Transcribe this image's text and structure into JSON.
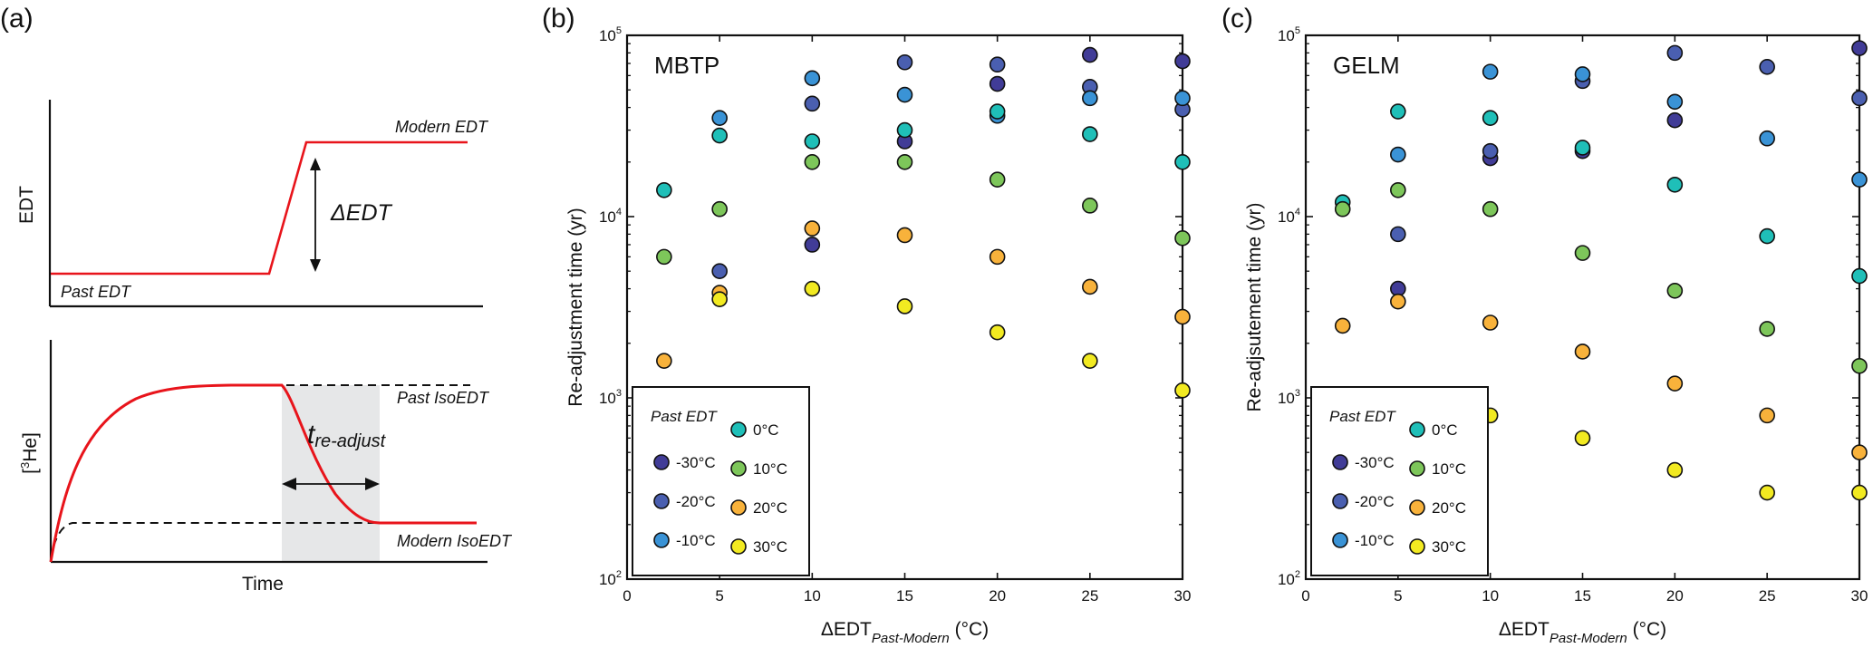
{
  "figure": {
    "panel_a": {
      "letter": "(a)",
      "top": {
        "ylabel": "EDT",
        "past_label": "Past EDT",
        "modern_label": "Modern EDT",
        "delta_label": "ΔEDT"
      },
      "bottom": {
        "ylabel_pre": "[",
        "ylabel_sup": "3",
        "ylabel_post": "He]",
        "xlabel": "Time",
        "past_iso_label": "Past IsoEDT",
        "modern_iso_label": "Modern IsoEDT",
        "t_main": "t",
        "t_sub": "re-adjust"
      },
      "colors": {
        "curve": "#e8141b",
        "shade": "#e6e7e8"
      }
    }
  },
  "chart_data": [
    {
      "type": "scatter",
      "panel": "(b)",
      "title": "MBTP",
      "xlabel_main": "ΔEDT",
      "xlabel_sub": "Past-Modern",
      "xlabel_unit": " (°C)",
      "ylabel": "Re-adjustment time (yr)",
      "xlim": [
        0,
        30
      ],
      "ylim": [
        100,
        100000
      ],
      "yscale": "log",
      "xticks": [
        0,
        5,
        10,
        15,
        20,
        25,
        30
      ],
      "yticks": [
        {
          "base": "10",
          "exp": "2"
        },
        {
          "base": "10",
          "exp": "3"
        },
        {
          "base": "10",
          "exp": "4"
        },
        {
          "base": "10",
          "exp": "5"
        }
      ],
      "legend_title": "Past EDT",
      "legend_position": "bottom-left",
      "series": [
        {
          "name": "-30°C",
          "color": "#413c97",
          "points": [
            [
              10,
              7000
            ],
            [
              15,
              26000
            ],
            [
              20,
              54000
            ],
            [
              25,
              78000
            ],
            [
              30,
              72000
            ]
          ]
        },
        {
          "name": "-20°C",
          "color": "#4a5fb0",
          "points": [
            [
              5,
              5000
            ],
            [
              10,
              42000
            ],
            [
              15,
              71000
            ],
            [
              20,
              69000
            ],
            [
              25,
              52000
            ],
            [
              30,
              39000
            ]
          ]
        },
        {
          "name": "-10°C",
          "color": "#3a93d6",
          "points": [
            [
              5,
              35000
            ],
            [
              10,
              58000
            ],
            [
              15,
              47000
            ],
            [
              20,
              36000
            ],
            [
              25,
              45000
            ],
            [
              30,
              45000
            ]
          ]
        },
        {
          "name": "0°C",
          "color": "#1fbfb8",
          "points": [
            [
              2,
              14000
            ],
            [
              5,
              28000
            ],
            [
              10,
              26000
            ],
            [
              15,
              30000
            ],
            [
              20,
              38000
            ],
            [
              25,
              28500
            ],
            [
              30,
              20000
            ]
          ]
        },
        {
          "name": "10°C",
          "color": "#7dc65a",
          "points": [
            [
              2,
              6000
            ],
            [
              5,
              11000
            ],
            [
              10,
              20000
            ],
            [
              15,
              20000
            ],
            [
              20,
              16000
            ],
            [
              25,
              11500
            ],
            [
              30,
              7600
            ]
          ]
        },
        {
          "name": "20°C",
          "color": "#f8b23b",
          "points": [
            [
              2,
              1600
            ],
            [
              5,
              3800
            ],
            [
              10,
              8600
            ],
            [
              15,
              7900
            ],
            [
              20,
              6000
            ],
            [
              25,
              4100
            ],
            [
              30,
              2800
            ]
          ]
        },
        {
          "name": "30°C",
          "color": "#f2ea21",
          "points": [
            [
              2,
              900
            ],
            [
              5,
              3500
            ],
            [
              10,
              4000
            ],
            [
              15,
              3200
            ],
            [
              20,
              2300
            ],
            [
              25,
              1600
            ],
            [
              30,
              1100
            ]
          ]
        }
      ]
    },
    {
      "type": "scatter",
      "panel": "(c)",
      "title": "GELM",
      "xlabel_main": "ΔEDT",
      "xlabel_sub": "Past-Modern",
      "xlabel_unit": " (°C)",
      "ylabel": "Re-adjsutement time (yr)",
      "xlim": [
        0,
        30
      ],
      "ylim": [
        100,
        100000
      ],
      "yscale": "log",
      "xticks": [
        0,
        5,
        10,
        15,
        20,
        25,
        30
      ],
      "yticks": [
        {
          "base": "10",
          "exp": "2"
        },
        {
          "base": "10",
          "exp": "3"
        },
        {
          "base": "10",
          "exp": "4"
        },
        {
          "base": "10",
          "exp": "5"
        }
      ],
      "legend_title": "Past EDT",
      "legend_position": "bottom-left",
      "series": [
        {
          "name": "-30°C",
          "color": "#413c97",
          "points": [
            [
              5,
              4000
            ],
            [
              10,
              21000
            ],
            [
              15,
              23000
            ],
            [
              20,
              34000
            ],
            [
              30,
              85000
            ]
          ]
        },
        {
          "name": "-20°C",
          "color": "#4a5fb0",
          "points": [
            [
              5,
              8000
            ],
            [
              10,
              23000
            ],
            [
              15,
              56000
            ],
            [
              20,
              80000
            ],
            [
              25,
              67000
            ],
            [
              30,
              45000
            ]
          ]
        },
        {
          "name": "-10°C",
          "color": "#3a93d6",
          "points": [
            [
              5,
              22000
            ],
            [
              10,
              63000
            ],
            [
              15,
              61000
            ],
            [
              20,
              43000
            ],
            [
              25,
              27000
            ],
            [
              30,
              16000
            ]
          ]
        },
        {
          "name": "0°C",
          "color": "#1fbfb8",
          "points": [
            [
              2,
              12000
            ],
            [
              5,
              38000
            ],
            [
              10,
              35000
            ],
            [
              15,
              24000
            ],
            [
              20,
              15000
            ],
            [
              25,
              7800
            ],
            [
              30,
              4700
            ]
          ]
        },
        {
          "name": "10°C",
          "color": "#7dc65a",
          "points": [
            [
              2,
              11000
            ],
            [
              5,
              14000
            ],
            [
              10,
              11000
            ],
            [
              15,
              6300
            ],
            [
              20,
              3900
            ],
            [
              25,
              2400
            ],
            [
              30,
              1500
            ]
          ]
        },
        {
          "name": "20°C",
          "color": "#f8b23b",
          "points": [
            [
              2,
              2500
            ],
            [
              5,
              3400
            ],
            [
              10,
              2600
            ],
            [
              15,
              1800
            ],
            [
              20,
              1200
            ],
            [
              25,
              800
            ],
            [
              30,
              500
            ]
          ]
        },
        {
          "name": "30°C",
          "color": "#f2ea21",
          "points": [
            [
              2,
              700
            ],
            [
              5,
              1000
            ],
            [
              10,
              800
            ],
            [
              15,
              600
            ],
            [
              20,
              400
            ],
            [
              25,
              300
            ],
            [
              30,
              300
            ]
          ]
        }
      ]
    }
  ]
}
